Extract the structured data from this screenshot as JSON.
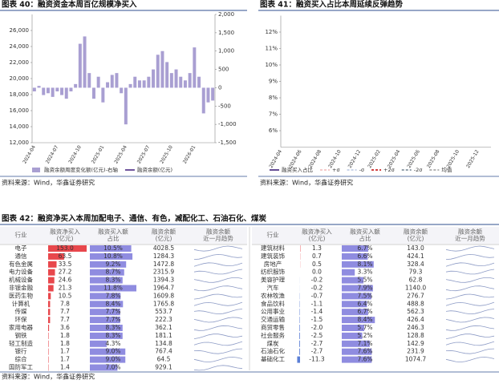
{
  "chart_data": [
    {
      "type": "bar",
      "title": "图表 40：融资资金本周百亿规模净买入",
      "source": "资料来源：Wind，华鑫证券研究",
      "categories": [
        "2024-04",
        null,
        null,
        null,
        null,
        "2024-07",
        null,
        null,
        null,
        null,
        "2024-10",
        null,
        null,
        null,
        null,
        "2025-01",
        null,
        null,
        null,
        null,
        "2025-04",
        null,
        null,
        null,
        null,
        "2025-07",
        null,
        null,
        null,
        null,
        "2025-10",
        null,
        null,
        null,
        null,
        "2026-01",
        null,
        null,
        null,
        null
      ],
      "series": [
        {
          "name": "融资余额周度变化额(亿元)-右轴",
          "type": "bar",
          "axis": "y2",
          "color": "#a99fd2",
          "values": [
            -100,
            50,
            -200,
            -150,
            -250,
            -100,
            -200,
            -300,
            -100,
            100,
            1200,
            1400,
            400,
            -300,
            300,
            -400,
            150,
            350,
            400,
            -150,
            -1000,
            100,
            300,
            200,
            200,
            300,
            500,
            900,
            1000,
            700,
            400,
            500,
            300,
            200,
            400,
            1100,
            300,
            -700,
            -400,
            -350
          ]
        },
        {
          "name": "融资余额(亿元)",
          "type": "line",
          "color": "#4b2a84",
          "values": [
            15000,
            14900,
            14900,
            14800,
            14600,
            14500,
            14300,
            14100,
            13800,
            13700,
            16500,
            18200,
            18600,
            18400,
            18700,
            18300,
            18400,
            18800,
            19200,
            19000,
            17900,
            18000,
            18300,
            18500,
            18700,
            19000,
            19600,
            20800,
            22300,
            23000,
            23600,
            24200,
            24600,
            24800,
            25300,
            26800,
            27000,
            26200,
            25800,
            25400
          ]
        }
      ],
      "ylim": [
        12000,
        28000
      ],
      "yticks": [
        {
          "value": 12000,
          "label": "12,000"
        },
        {
          "value": 14000,
          "label": "14,000"
        },
        {
          "value": 16000,
          "label": "16,000"
        },
        {
          "value": 18000,
          "label": "18,000"
        },
        {
          "value": 20000,
          "label": "20,000"
        },
        {
          "value": 22000,
          "label": "22,000"
        },
        {
          "value": 24000,
          "label": "24,000"
        },
        {
          "value": 26000,
          "label": "26,000"
        }
      ],
      "y2lim": [
        -1500,
        2000
      ],
      "y2ticks": [
        {
          "value": -1500,
          "label": "-1,500"
        },
        {
          "value": -1000,
          "label": "-1,000"
        },
        -500,
        0,
        500,
        {
          "value": 1000,
          "label": "1,000"
        },
        {
          "value": 1500,
          "label": "1,500"
        },
        {
          "value": 2000,
          "label": "2,000"
        }
      ]
    },
    {
      "type": "line",
      "title": "图表 41：融资买入占比本周延续反弹趋势",
      "source": "资料来源：Wind，华鑫证券研究",
      "categories": [
        "2024-04",
        null,
        null,
        "2024-06",
        null,
        null,
        "2024-08",
        null,
        null,
        "2024-10",
        null,
        null,
        "2024-12",
        null,
        null,
        "2025-02",
        null,
        null,
        "2025-04",
        null,
        null,
        "2025-06",
        null,
        null,
        "2025-08",
        null,
        null,
        "2025-10",
        null,
        null,
        "2025-12",
        null,
        null
      ],
      "series": [
        {
          "name": "融资买入占比",
          "color": "#3d1f7a",
          "style": "solid",
          "values": [
            8.0,
            7.5,
            7.2,
            7.0,
            7.3,
            6.9,
            6.6,
            6.4,
            7.0,
            10.8,
            10.5,
            9.6,
            10.2,
            9.0,
            9.6,
            10.4,
            10.0,
            9.4,
            10.6,
            8.8,
            9.3,
            9.8,
            9.5,
            10.0,
            10.4,
            11.5,
            11.2,
            11.9,
            10.6,
            11.0,
            10.2,
            9.2,
            9.6
          ]
        },
        {
          "name": "+σ",
          "color": "#f2b8b8",
          "style": "dashed",
          "values": [
            7.8,
            7.8,
            7.7,
            7.7,
            7.6,
            7.6,
            7.5,
            7.5,
            7.5,
            8.2,
            8.7,
            9.1,
            9.3,
            9.5,
            9.6,
            9.8,
            9.9,
            10.0,
            10.1,
            10.2,
            10.2,
            10.3,
            10.35,
            10.45,
            10.55,
            10.65,
            10.75,
            10.85,
            10.95,
            10.95,
            11.05,
            11.05,
            11.05
          ]
        },
        {
          "name": "-σ",
          "color": "#b9c6e4",
          "style": "dashed",
          "values": [
            6.6,
            6.6,
            6.5,
            6.5,
            6.4,
            6.4,
            6.3,
            6.3,
            6.3,
            6.4,
            6.5,
            6.7,
            6.9,
            7.1,
            7.2,
            7.4,
            7.5,
            7.6,
            7.7,
            7.8,
            7.8,
            7.9,
            8.05,
            8.15,
            8.25,
            8.35,
            8.45,
            8.55,
            8.65,
            8.65,
            8.75,
            8.75,
            8.75
          ]
        },
        {
          "name": "+2σ",
          "color": "#c00000",
          "style": "dashed",
          "values": [
            8.4,
            8.4,
            8.3,
            8.3,
            8.2,
            8.2,
            8.1,
            8.1,
            8.1,
            9.1,
            9.8,
            10.3,
            10.5,
            10.7,
            10.8,
            11.0,
            11.1,
            11.2,
            11.3,
            11.4,
            11.4,
            11.5,
            11.5,
            11.6,
            11.7,
            11.8,
            11.9,
            12.0,
            12.1,
            12.1,
            12.2,
            12.2,
            12.2
          ]
        },
        {
          "name": "-2σ",
          "color": "#6f808f",
          "style": "dashed",
          "values": [
            6.0,
            6.0,
            5.9,
            5.9,
            5.8,
            5.8,
            5.7,
            5.7,
            5.7,
            5.5,
            5.4,
            5.5,
            5.7,
            5.9,
            6.0,
            6.2,
            6.3,
            6.4,
            6.5,
            6.6,
            6.6,
            6.7,
            6.9,
            7.0,
            7.1,
            7.2,
            7.3,
            7.4,
            7.5,
            7.5,
            7.6,
            7.6,
            7.6
          ]
        },
        {
          "name": "均值",
          "color": "#9a9a9a",
          "style": "dashed",
          "values": [
            7.2,
            7.2,
            7.1,
            7.1,
            7.0,
            7.0,
            6.9,
            6.9,
            6.9,
            7.3,
            7.6,
            7.9,
            8.1,
            8.3,
            8.4,
            8.6,
            8.7,
            8.8,
            8.9,
            9.0,
            9.0,
            9.1,
            9.2,
            9.3,
            9.4,
            9.5,
            9.6,
            9.7,
            9.8,
            9.8,
            9.9,
            9.9,
            9.9
          ]
        }
      ],
      "ylim": [
        5,
        13
      ],
      "yticks": [
        {
          "value": 6,
          "label": "6%"
        },
        {
          "value": 7,
          "label": "7%"
        },
        {
          "value": 8,
          "label": "8%"
        },
        {
          "value": 9,
          "label": "9%"
        },
        {
          "value": 10,
          "label": "10%"
        },
        {
          "value": 11,
          "label": "11%"
        },
        {
          "value": 12,
          "label": "12%"
        }
      ]
    }
  ],
  "table": {
    "title": "图表 42：融资净买入本周加配电子、通信、有色，减配化工、石油石化、煤炭",
    "source": "资料来源：Wind，华鑫证券研究",
    "headers": [
      [
        "行业"
      ],
      [
        "融资净买入",
        "(亿元)"
      ],
      [
        "融资买入额",
        "占比"
      ],
      [
        "融资余额",
        "(亿元)"
      ],
      [
        "融资余额",
        "近一月趋势"
      ]
    ],
    "rows_left": [
      [
        "电子",
        "153.0",
        "10.5%",
        "4028.5"
      ],
      [
        "通信",
        "63.5",
        "10.8%",
        "1284.3"
      ],
      [
        "有色金属",
        "33.5",
        "9.2%",
        "1472.8"
      ],
      [
        "电力设备",
        "27.2",
        "8.7%",
        "2315.9"
      ],
      [
        "机械设备",
        "24.6",
        "8.3%",
        "1394.3"
      ],
      [
        "非银金融",
        "21.3",
        "11.8%",
        "1964.7"
      ],
      [
        "医药生物",
        "10.5",
        "7.8%",
        "1609.8"
      ],
      [
        "计算机",
        "7.8",
        "8.4%",
        "1765.8"
      ],
      [
        "传媒",
        "7.7",
        "7.7%",
        "553.7"
      ],
      [
        "环保",
        "7.7",
        "7.7%",
        "222.3"
      ],
      [
        "家用电器",
        "3.6",
        "8.3%",
        "362.1"
      ],
      [
        "钢铁",
        "1.8",
        "8.3%",
        "181.1"
      ],
      [
        "轻工制造",
        "1.8",
        "4.3%",
        "134.8"
      ],
      [
        "银行",
        "1.7",
        "9.0%",
        "767.4"
      ],
      [
        "综合",
        "1.7",
        "9.0%",
        "64.5"
      ],
      [
        "国防军工",
        "1.4",
        "7.0%",
        "929.1"
      ]
    ],
    "rows_right": [
      [
        "建筑材料",
        "1.3",
        "6.7%",
        "143.0"
      ],
      [
        "建筑装饰",
        "0.7",
        "6.6%",
        "424.1"
      ],
      [
        "房地产",
        "0.5",
        "8.1%",
        "328.4"
      ],
      [
        "纺织服饰",
        "0.0",
        "3.3%",
        "79.3"
      ],
      [
        "美容护理",
        "-0.2",
        "5.5%",
        "62.8"
      ],
      [
        "汽车",
        "-0.2",
        "7.9%",
        "1140.0"
      ],
      [
        "农林牧渔",
        "-0.7",
        "7.5%",
        "276.7"
      ],
      [
        "食品饮料",
        "-1.1",
        "6.4%",
        "488.8"
      ],
      [
        "公用事业",
        "-1.4",
        "6.7%",
        "562.3"
      ],
      [
        "交通运输",
        "-1.5",
        "8.4%",
        "426.4"
      ],
      [
        "商贸零售",
        "-2.0",
        "5.7%",
        "246.3"
      ],
      [
        "社会服务",
        "-2.5",
        "5.2%",
        "128.8"
      ],
      [
        "煤炭",
        "-2.7",
        "7.1%",
        "142.9"
      ],
      [
        "石油石化",
        "-2.7",
        "7.6%",
        "231.9"
      ],
      [
        "基础化工",
        "-11.3",
        "7.6%",
        "1074.7"
      ]
    ],
    "positive_color": "#e8474c",
    "negative_color": "#5b7fd6",
    "share_color": "#8f8ce0"
  }
}
